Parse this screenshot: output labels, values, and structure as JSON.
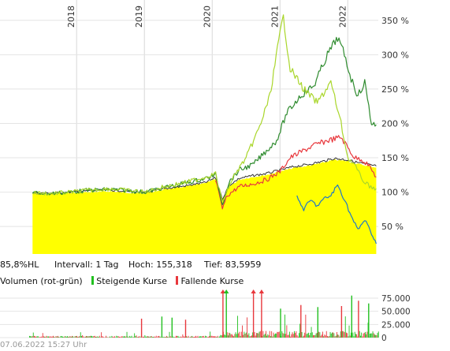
{
  "chart_data": [
    {
      "type": "line",
      "title": "",
      "x_axis": {
        "ticks": [
          {
            "label": "2018",
            "x": 2018.0
          },
          {
            "label": "2019",
            "x": 2019.0
          },
          {
            "label": "2020",
            "x": 2020.0
          },
          {
            "label": "2021",
            "x": 2021.0
          },
          {
            "label": "2022",
            "x": 2022.0
          }
        ],
        "range": [
          2017.3,
          2022.45
        ],
        "gridlines": true
      },
      "y_axis": {
        "ticks": [
          {
            "label": "50 %",
            "v": 50
          },
          {
            "label": "100 %",
            "v": 100
          },
          {
            "label": "150 %",
            "v": 150
          },
          {
            "label": "200 %",
            "v": 200
          },
          {
            "label": "250 %",
            "v": 250
          },
          {
            "label": "300 %",
            "v": 300
          },
          {
            "label": "350 %",
            "v": 350
          }
        ],
        "range": [
          10,
          375
        ],
        "position": "right"
      },
      "series": [
        {
          "color": "#ffff00",
          "style": "area",
          "x": [
            2017.35,
            2017.6,
            2017.9,
            2018.2,
            2018.5,
            2018.8,
            2019.0,
            2019.3,
            2019.6,
            2019.9,
            2020.05,
            2020.15,
            2020.25,
            2020.4,
            2020.6,
            2020.8,
            2021.0,
            2021.2,
            2021.4,
            2021.6,
            2021.8,
            2022.0,
            2022.1,
            2022.2,
            2022.3,
            2022.42
          ],
          "y": [
            98,
            97,
            99,
            100,
            101,
            99,
            98,
            104,
            108,
            113,
            120,
            88,
            108,
            118,
            122,
            125,
            130,
            135,
            138,
            142,
            147,
            145,
            142,
            140,
            138,
            136
          ]
        },
        {
          "color": "#333333",
          "style": "line",
          "x": [
            2017.35,
            2017.6,
            2017.9,
            2018.2,
            2018.5,
            2018.8,
            2019.0,
            2019.3,
            2019.6,
            2019.9,
            2020.05,
            2020.15,
            2020.25,
            2020.4,
            2020.6,
            2020.8,
            2021.0,
            2021.2,
            2021.4,
            2021.6,
            2021.8,
            2022.0,
            2022.1,
            2022.2,
            2022.3,
            2022.42
          ],
          "y": [
            99,
            98,
            100,
            102,
            103,
            101,
            99,
            105,
            109,
            114,
            121,
            90,
            110,
            120,
            124,
            127,
            132,
            137,
            140,
            144,
            149,
            147,
            144,
            142,
            140,
            138
          ]
        },
        {
          "color": "#e8383d",
          "style": "line",
          "x": [
            2020.05,
            2020.15,
            2020.22,
            2020.4,
            2020.6,
            2020.8,
            2021.0,
            2021.15,
            2021.3,
            2021.5,
            2021.7,
            2021.9,
            2022.0,
            2022.1,
            2022.2,
            2022.3,
            2022.42
          ],
          "y": [
            118,
            76,
            95,
            108,
            112,
            118,
            130,
            150,
            158,
            168,
            175,
            180,
            165,
            150,
            148,
            140,
            122
          ]
        },
        {
          "color": "#2e8b2e",
          "style": "line",
          "x": [
            2017.35,
            2017.6,
            2017.9,
            2018.2,
            2018.5,
            2018.8,
            2019.0,
            2019.3,
            2019.6,
            2019.9,
            2020.05,
            2020.15,
            2020.25,
            2020.4,
            2020.6,
            2020.8,
            2020.95,
            2021.1,
            2021.3,
            2021.5,
            2021.7,
            2021.85,
            2021.95,
            2022.05,
            2022.15,
            2022.25,
            2022.35,
            2022.42
          ],
          "y": [
            99,
            98,
            100,
            103,
            104,
            102,
            100,
            107,
            113,
            120,
            125,
            82,
            115,
            132,
            140,
            160,
            175,
            215,
            240,
            255,
            300,
            325,
            300,
            265,
            240,
            260,
            200,
            198
          ]
        },
        {
          "color": "#a9d62a",
          "style": "line",
          "x": [
            2017.35,
            2017.6,
            2017.9,
            2018.2,
            2018.5,
            2018.8,
            2019.0,
            2019.3,
            2019.6,
            2019.9,
            2020.05,
            2020.15,
            2020.3,
            2020.5,
            2020.7,
            2020.85,
            2021.0,
            2021.05,
            2021.15,
            2021.35,
            2021.55,
            2021.75,
            2021.9,
            2022.0,
            2022.1,
            2022.2,
            2022.3,
            2022.42
          ],
          "y": [
            99,
            98,
            100,
            103,
            105,
            102,
            100,
            108,
            114,
            122,
            127,
            85,
            120,
            150,
            195,
            240,
            330,
            355,
            280,
            250,
            230,
            260,
            200,
            150,
            140,
            120,
            110,
            105
          ]
        },
        {
          "color": "#1e78c8",
          "style": "line",
          "x": [
            2021.25,
            2021.35,
            2021.45,
            2021.55,
            2021.65,
            2021.75,
            2021.85,
            2021.95,
            2022.05,
            2022.15,
            2022.25,
            2022.35,
            2022.42
          ],
          "y": [
            92,
            75,
            88,
            80,
            90,
            95,
            110,
            90,
            65,
            45,
            60,
            40,
            25
          ]
        }
      ]
    },
    {
      "type": "bar",
      "title": "Volumen (rot-grün)",
      "x_range": [
        2017.3,
        2022.45
      ],
      "y_axis": {
        "ticks": [
          {
            "label": "0",
            "v": 0
          },
          {
            "label": "25.000",
            "v": 25000
          },
          {
            "label": "50.000",
            "v": 50000
          },
          {
            "label": "75.000",
            "v": 75000
          }
        ],
        "range": [
          0,
          90000
        ],
        "position": "right"
      },
      "legend": [
        "Steigende Kurse",
        "Fallende Kurse"
      ],
      "colors": {
        "up": "#22c020",
        "down": "#e8383d",
        "marker_up": "#22c020",
        "marker_down": "#e8383d"
      },
      "peaks": [
        {
          "x": 2018.95,
          "v": 36000,
          "dir": "down"
        },
        {
          "x": 2019.25,
          "v": 40000,
          "dir": "up"
        },
        {
          "x": 2019.4,
          "v": 38000,
          "dir": "up"
        },
        {
          "x": 2019.6,
          "v": 34000,
          "dir": "down"
        },
        {
          "x": 2020.15,
          "v": 96000,
          "dir": "down"
        },
        {
          "x": 2020.2,
          "v": 96000,
          "dir": "up"
        },
        {
          "x": 2020.6,
          "v": 96000,
          "dir": "down"
        },
        {
          "x": 2020.72,
          "v": 96000,
          "dir": "down"
        },
        {
          "x": 2021.0,
          "v": 55000,
          "dir": "up"
        },
        {
          "x": 2021.3,
          "v": 62000,
          "dir": "down"
        },
        {
          "x": 2021.55,
          "v": 58000,
          "dir": "up"
        },
        {
          "x": 2021.9,
          "v": 60000,
          "dir": "down"
        },
        {
          "x": 2022.05,
          "v": 80000,
          "dir": "up"
        },
        {
          "x": 2022.15,
          "v": 70000,
          "dir": "down"
        },
        {
          "x": 2022.3,
          "v": 65000,
          "dir": "up"
        }
      ]
    }
  ],
  "info": {
    "range_label": "85,8%HL",
    "interval": "Intervall: 1 Tag",
    "high": "Hoch: 155,318",
    "low": "Tief: 83,5959"
  },
  "legend": {
    "title": "Volumen (rot-grün)",
    "up_label": "Steigende Kurse",
    "down_label": "Fallende Kurse"
  },
  "footer": {
    "timestamp": "07.06.2022 15:27 Uhr"
  }
}
